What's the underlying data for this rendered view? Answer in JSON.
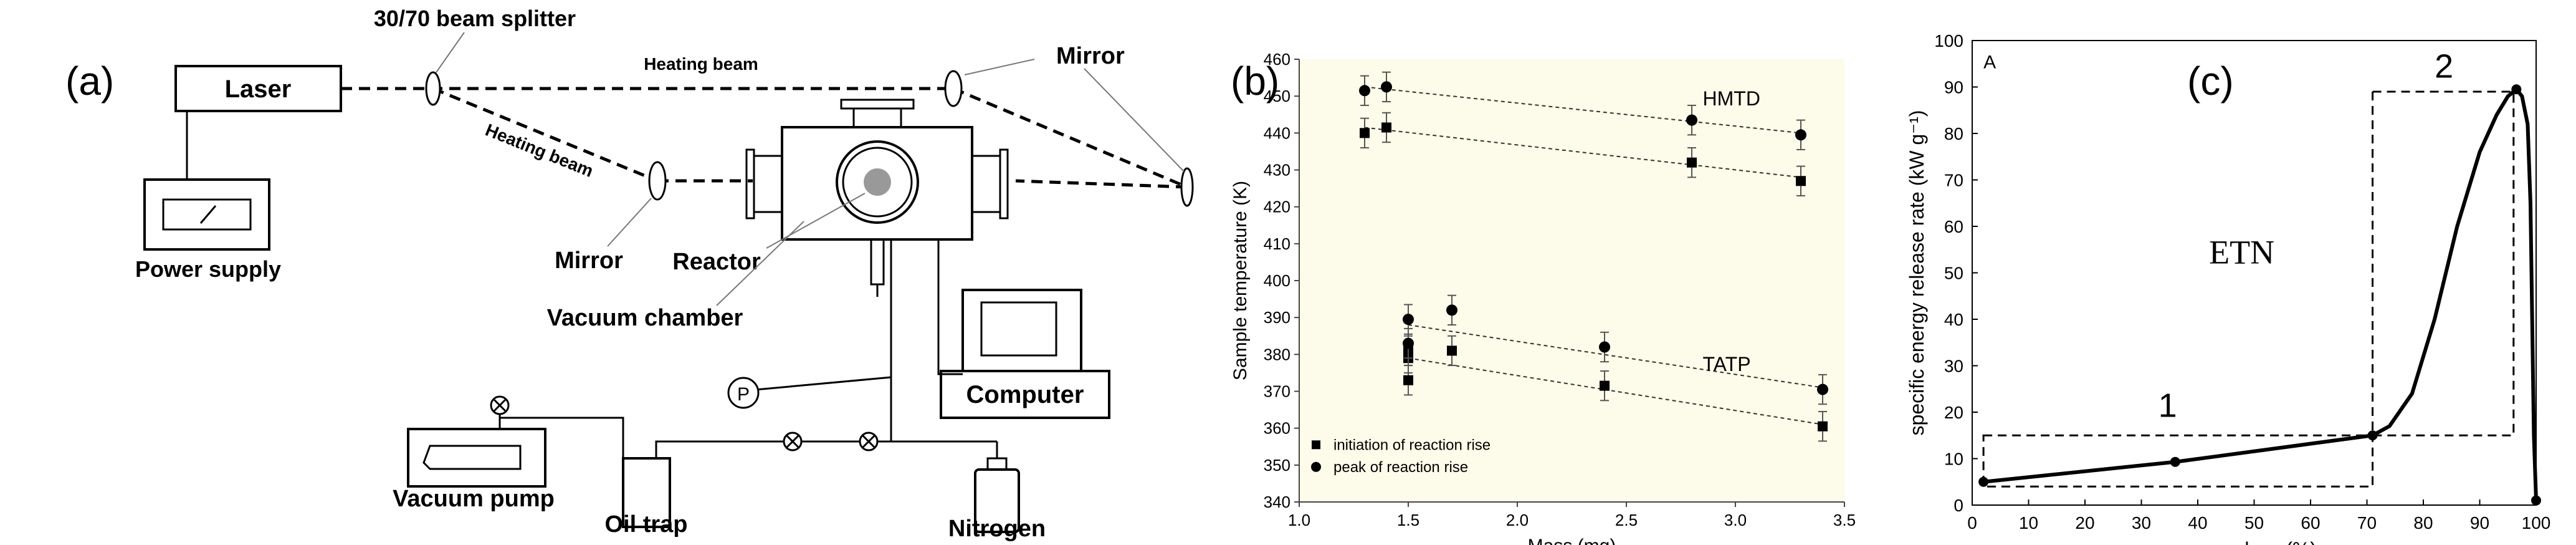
{
  "figure": {
    "panel_a": {
      "tag": "(a)",
      "labels": {
        "laser": "Laser",
        "beam_splitter": "30/70 beam splitter",
        "heating_beam_top": "Heating beam",
        "heating_beam_diag": "Heating beam",
        "mirror_right": "Mirror",
        "mirror_left": "Mirror",
        "power_supply": "Power supply",
        "reactor": "Reactor",
        "vacuum_chamber": "Vacuum chamber",
        "pressure_gauge": "P",
        "computer": "Computer",
        "vacuum_pump": "Vacuum pump",
        "oil_trap": "Oil trap",
        "nitrogen": "Nitrogen"
      }
    },
    "panel_b": {
      "tag": "(b)",
      "chart_data": {
        "type": "scatter",
        "xlabel": "Mass (mg)",
        "ylabel": "Sample temperature (K)",
        "xlim": [
          1.0,
          3.5
        ],
        "ylim": [
          340,
          460
        ],
        "xticks": [
          "1.0",
          "1.5",
          "2.0",
          "2.5",
          "3.0",
          "3.5"
        ],
        "yticks": [
          "340",
          "350",
          "360",
          "370",
          "380",
          "390",
          "400",
          "410",
          "420",
          "430",
          "440",
          "450",
          "460"
        ],
        "background": "#fdfbe9",
        "annotations": [
          "HMTD",
          "TATP"
        ],
        "legend": {
          "placement": "bottom-left",
          "entries": [
            "initiation of reaction rise",
            "peak of reaction rise"
          ]
        },
        "series": [
          {
            "name": "initiation of reaction rise",
            "marker": "square",
            "group": "HMTD",
            "x": [
              1.3,
              1.4,
              2.8,
              3.3
            ],
            "y": [
              440,
              441.5,
              432,
              427
            ],
            "err": 4
          },
          {
            "name": "peak of reaction rise",
            "marker": "circle",
            "group": "HMTD",
            "x": [
              1.3,
              1.4,
              2.8,
              3.3
            ],
            "y": [
              451.5,
              452.5,
              443.5,
              439.5
            ],
            "err": 4
          },
          {
            "name": "initiation of reaction rise",
            "marker": "square",
            "group": "TATP",
            "x": [
              1.5,
              1.5,
              1.5,
              1.7,
              2.4,
              3.4
            ],
            "y": [
              373,
              379,
              381,
              381,
              371.5,
              360.5
            ],
            "err": 4
          },
          {
            "name": "peak of reaction rise",
            "marker": "circle",
            "group": "TATP",
            "x": [
              1.5,
              1.5,
              1.7,
              2.4,
              3.4
            ],
            "y": [
              383,
              389.5,
              392,
              382,
              370.5
            ],
            "err": 4
          }
        ],
        "trend_lines": [
          {
            "x": [
              1.3,
              3.3
            ],
            "y": [
              452.5,
              440
            ]
          },
          {
            "x": [
              1.3,
              3.3
            ],
            "y": [
              441.5,
              428
            ]
          },
          {
            "x": [
              1.5,
              3.4
            ],
            "y": [
              388,
              371
            ]
          },
          {
            "x": [
              1.5,
              3.4
            ],
            "y": [
              379,
              361
            ]
          }
        ]
      }
    },
    "panel_c": {
      "tag": "(c)",
      "chart_data": {
        "type": "line",
        "title": "A",
        "xlabel": "mass loss (%)",
        "ylabel": "specific energy release rate (kW g⁻¹)",
        "xlim": [
          0,
          100
        ],
        "ylim": [
          0,
          100
        ],
        "xticks": [
          "0",
          "10",
          "20",
          "30",
          "40",
          "50",
          "60",
          "70",
          "80",
          "90",
          "100"
        ],
        "yticks": [
          "0",
          "10",
          "20",
          "30",
          "40",
          "50",
          "60",
          "70",
          "80",
          "90",
          "100"
        ],
        "annotations": [
          "ETN",
          "1",
          "2"
        ],
        "series": [
          {
            "name": "",
            "points": [
              [
                2,
                5
              ],
              [
                36,
                9.3
              ],
              [
                71,
                15
              ],
              [
                74,
                17
              ],
              [
                78,
                24
              ],
              [
                82,
                40
              ],
              [
                86,
                60
              ],
              [
                90,
                76
              ],
              [
                93,
                84
              ],
              [
                95,
                88
              ],
              [
                96.5,
                89.5
              ],
              [
                97.5,
                88
              ],
              [
                98.5,
                82
              ],
              [
                99,
                65
              ],
              [
                99.3,
                40
              ],
              [
                99.6,
                15
              ],
              [
                100,
                1
              ]
            ]
          }
        ],
        "markers": [
          [
            2,
            5
          ],
          [
            36,
            9.3
          ],
          [
            71,
            15
          ],
          [
            96.5,
            89.5
          ],
          [
            100,
            1
          ]
        ],
        "boxes": [
          {
            "x": [
              2,
              71
            ],
            "y": [
              4,
              15
            ]
          },
          {
            "x": [
              71,
              96
            ],
            "y": [
              15,
              89
            ]
          }
        ]
      }
    }
  }
}
